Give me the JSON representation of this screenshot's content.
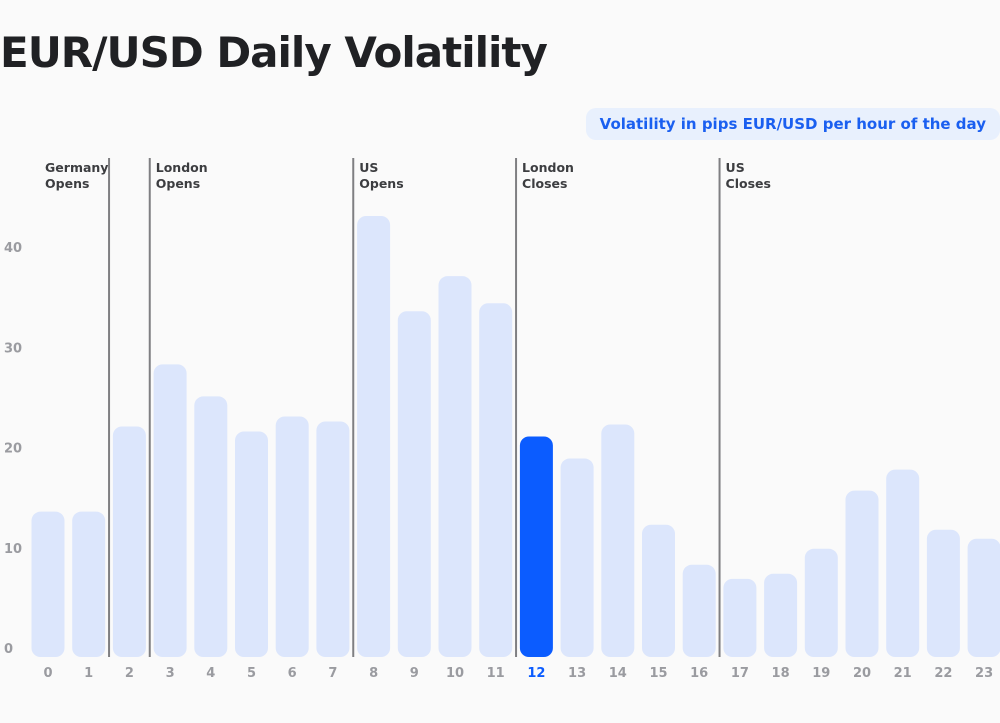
{
  "chart_data": {
    "type": "bar",
    "title": "EUR/USD Daily Volatility",
    "legend": "Volatility in pips EUR/USD per hour of the day",
    "categories": [
      "0",
      "1",
      "2",
      "3",
      "4",
      "5",
      "6",
      "7",
      "8",
      "9",
      "10",
      "11",
      "12",
      "13",
      "14",
      "15",
      "16",
      "17",
      "18",
      "19",
      "20",
      "21",
      "22",
      "23"
    ],
    "values": [
      14.5,
      14.5,
      23,
      29.2,
      26,
      22.5,
      24,
      23.5,
      44,
      34.5,
      38,
      35.3,
      22,
      19.8,
      23.2,
      13.2,
      9.2,
      7.8,
      8.3,
      10.8,
      16.6,
      18.7,
      12.7,
      11.8
    ],
    "highlighted_category": "12",
    "y_ticks": [
      0,
      10,
      20,
      30,
      40
    ],
    "ylim": [
      0,
      44
    ],
    "xlabel": "",
    "ylabel": "",
    "colors": {
      "bar": "#dce6fc",
      "highlight": "#0b5cff",
      "divider": "#7f7f82",
      "title": "#202124",
      "legend_text": "#1a5ff0",
      "legend_bg": "#e8f0fd",
      "tick_label": "#9a9ba0",
      "session_label": "#3c3d40"
    },
    "sessions": [
      {
        "lines": [
          "Germany",
          "Opens"
        ],
        "after_category": "1"
      },
      {
        "lines": [
          "London",
          "Opens"
        ],
        "after_category": "2"
      },
      {
        "lines": [
          "US",
          "Opens"
        ],
        "after_category": "7"
      },
      {
        "lines": [
          "London",
          "Closes"
        ],
        "after_category": "11"
      },
      {
        "lines": [
          "US",
          "Closes"
        ],
        "after_category": "16"
      }
    ]
  }
}
